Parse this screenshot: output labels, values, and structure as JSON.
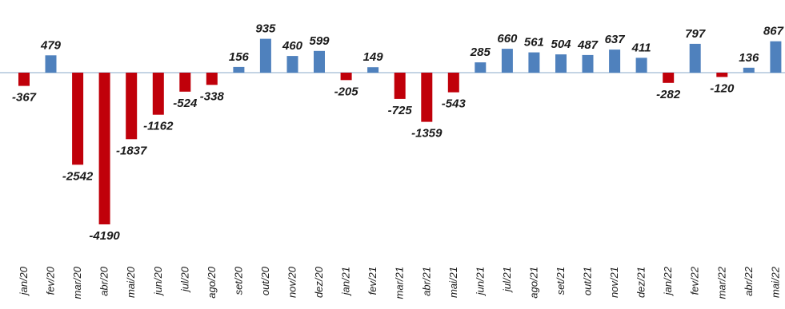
{
  "chart_data": {
    "type": "bar",
    "title": "",
    "xlabel": "",
    "ylabel": "",
    "categories": [
      "jan/20",
      "fev/20",
      "mar/20",
      "abr/20",
      "mai/20",
      "jun/20",
      "jul/20",
      "ago/20",
      "set/20",
      "out/20",
      "nov/20",
      "dez/20",
      "jan/21",
      "fev/21",
      "mar/21",
      "abr/21",
      "mai/21",
      "jun/21",
      "jul/21",
      "ago/21",
      "set/21",
      "out/21",
      "nov/21",
      "dez/21",
      "jan/22",
      "fev/22",
      "mar/22",
      "abr/22",
      "mai/22"
    ],
    "values": [
      -367,
      479,
      -2542,
      -4190,
      -1837,
      -1162,
      -524,
      -338,
      156,
      935,
      460,
      599,
      -205,
      149,
      -725,
      -1359,
      -543,
      285,
      660,
      561,
      504,
      487,
      637,
      411,
      -282,
      797,
      -120,
      136,
      867
    ],
    "value_labels": [
      "-367",
      "479",
      "-2542",
      "-4190",
      "-1837",
      "-1162",
      "-524",
      "-338",
      "156",
      "935",
      "460",
      "599",
      "-205",
      "149",
      "-725",
      "-1359",
      "-543",
      "285",
      "660",
      "561",
      "504",
      "487",
      "637",
      "411",
      "-282",
      "797",
      "-120",
      "136",
      "867"
    ],
    "ylim": [
      -4400,
      1000
    ],
    "grid": false,
    "legend": "none",
    "colors": {
      "positive": "#4f81bd",
      "negative": "#c0000a",
      "axis": "#8aa8c8"
    }
  }
}
